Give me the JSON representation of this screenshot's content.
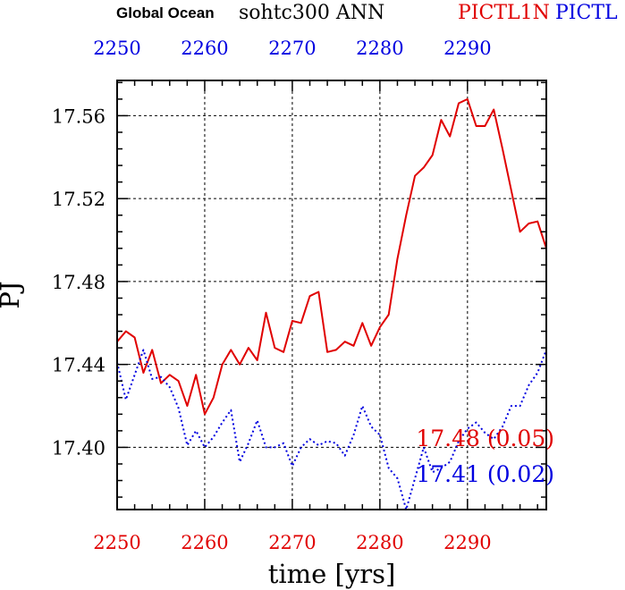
{
  "header": {
    "region": "Global Ocean",
    "variable": "sohtc300 ANN",
    "run1": "PICTL1N",
    "run2": "PICTL"
  },
  "chart_data": {
    "type": "line",
    "xlabel": "time [yrs]",
    "ylabel": "PJ",
    "xlim": [
      2250,
      2299
    ],
    "ylim": [
      17.37,
      17.577
    ],
    "x_ticks": [
      "2250",
      "2260",
      "2270",
      "2280",
      "2290"
    ],
    "y_ticks": [
      "17.40",
      "17.44",
      "17.48",
      "17.52",
      "17.56"
    ],
    "grid": true,
    "colors": {
      "series1": "#e00000",
      "series2": "#0000e0"
    },
    "series": [
      {
        "name": "PICTL1N",
        "style": "solid",
        "stat_label": "17.48 (0.05)",
        "x": [
          2250,
          2251,
          2252,
          2253,
          2254,
          2255,
          2256,
          2257,
          2258,
          2259,
          2260,
          2261,
          2262,
          2263,
          2264,
          2265,
          2266,
          2267,
          2268,
          2269,
          2270,
          2271,
          2272,
          2273,
          2274,
          2275,
          2276,
          2277,
          2278,
          2279,
          2280,
          2281,
          2282,
          2283,
          2284,
          2285,
          2286,
          2287,
          2288,
          2289,
          2290,
          2291,
          2292,
          2293,
          2294,
          2295,
          2296,
          2297,
          2298,
          2299
        ],
        "values": [
          17.451,
          17.456,
          17.453,
          17.436,
          17.447,
          17.431,
          17.435,
          17.432,
          17.42,
          17.435,
          17.416,
          17.424,
          17.44,
          17.447,
          17.44,
          17.448,
          17.442,
          17.465,
          17.448,
          17.446,
          17.461,
          17.46,
          17.473,
          17.475,
          17.446,
          17.447,
          17.451,
          17.449,
          17.46,
          17.449,
          17.458,
          17.464,
          17.491,
          17.512,
          17.531,
          17.535,
          17.541,
          17.558,
          17.55,
          17.566,
          17.568,
          17.555,
          17.555,
          17.563,
          17.544,
          17.524,
          17.504,
          17.508,
          17.509,
          17.496
        ]
      },
      {
        "name": "PICTL",
        "style": "dotted",
        "stat_label": "17.41 (0.02)",
        "x": [
          2250,
          2251,
          2252,
          2253,
          2254,
          2255,
          2256,
          2257,
          2258,
          2259,
          2260,
          2261,
          2262,
          2263,
          2264,
          2265,
          2266,
          2267,
          2268,
          2269,
          2270,
          2271,
          2272,
          2273,
          2274,
          2275,
          2276,
          2277,
          2278,
          2279,
          2280,
          2281,
          2282,
          2283,
          2284,
          2285,
          2286,
          2287,
          2288,
          2289,
          2290,
          2291,
          2292,
          2293,
          2294,
          2295,
          2296,
          2297,
          2298,
          2299
        ],
        "values": [
          17.441,
          17.423,
          17.435,
          17.447,
          17.433,
          17.434,
          17.429,
          17.419,
          17.401,
          17.408,
          17.4,
          17.405,
          17.412,
          17.418,
          17.393,
          17.402,
          17.413,
          17.4,
          17.4,
          17.402,
          17.391,
          17.4,
          17.404,
          17.401,
          17.403,
          17.402,
          17.396,
          17.406,
          17.42,
          17.41,
          17.406,
          17.39,
          17.385,
          17.37,
          17.385,
          17.4,
          17.388,
          17.39,
          17.393,
          17.403,
          17.409,
          17.412,
          17.407,
          17.404,
          17.41,
          17.42,
          17.42,
          17.43,
          17.436,
          17.447
        ]
      }
    ]
  }
}
